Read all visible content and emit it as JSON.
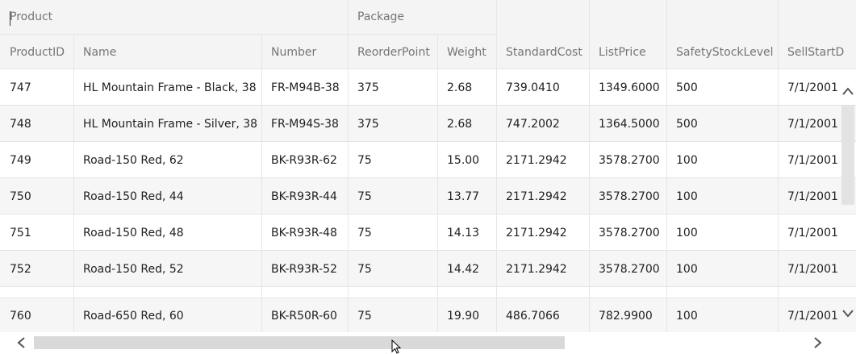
{
  "groups": {
    "product": "Product",
    "package": "Package"
  },
  "columns": [
    {
      "key": "id",
      "label": "ProductID"
    },
    {
      "key": "name",
      "label": "Name"
    },
    {
      "key": "number",
      "label": "Number"
    },
    {
      "key": "reorder",
      "label": "ReorderPoint"
    },
    {
      "key": "weight",
      "label": "Weight"
    },
    {
      "key": "stdcost",
      "label": "StandardCost"
    },
    {
      "key": "listprice",
      "label": "ListPrice"
    },
    {
      "key": "safety",
      "label": "SafetyStockLevel"
    },
    {
      "key": "sellstart",
      "label": "SellStartD"
    }
  ],
  "rows": [
    [
      "747",
      "HL Mountain Frame - Black, 38",
      "FR-M94B-38",
      "375",
      "2.68",
      "739.0410",
      "1349.6000",
      "500",
      "7/1/2001"
    ],
    [
      "748",
      "HL Mountain Frame - Silver, 38",
      "FR-M94S-38",
      "375",
      "2.68",
      "747.2002",
      "1364.5000",
      "500",
      "7/1/2001"
    ],
    [
      "749",
      "Road-150 Red, 62",
      "BK-R93R-62",
      "75",
      "15.00",
      "2171.2942",
      "3578.2700",
      "100",
      "7/1/2001"
    ],
    [
      "750",
      "Road-150 Red, 44",
      "BK-R93R-44",
      "75",
      "13.77",
      "2171.2942",
      "3578.2700",
      "100",
      "7/1/2001"
    ],
    [
      "751",
      "Road-150 Red, 48",
      "BK-R93R-48",
      "75",
      "14.13",
      "2171.2942",
      "3578.2700",
      "100",
      "7/1/2001"
    ],
    [
      "752",
      "Road-150 Red, 52",
      "BK-R93R-52",
      "75",
      "14.42",
      "2171.2942",
      "3578.2700",
      "100",
      "7/1/2001"
    ],
    [
      "760",
      "Road-650 Red, 60",
      "BK-R50R-60",
      "75",
      "19.90",
      "486.7066",
      "782.9900",
      "100",
      "7/1/2001"
    ]
  ],
  "icons": {
    "scroll_up": "chevron-up-icon",
    "scroll_down": "chevron-down-icon",
    "scroll_left": "chevron-left-icon",
    "scroll_right": "chevron-right-icon"
  },
  "colors": {
    "header_bg": "#f4f4f4",
    "header_text": "#757575",
    "row_bg": "#ffffff",
    "row_alt_bg": "#f6f6f6",
    "grid_line": "#e4e4e4"
  }
}
